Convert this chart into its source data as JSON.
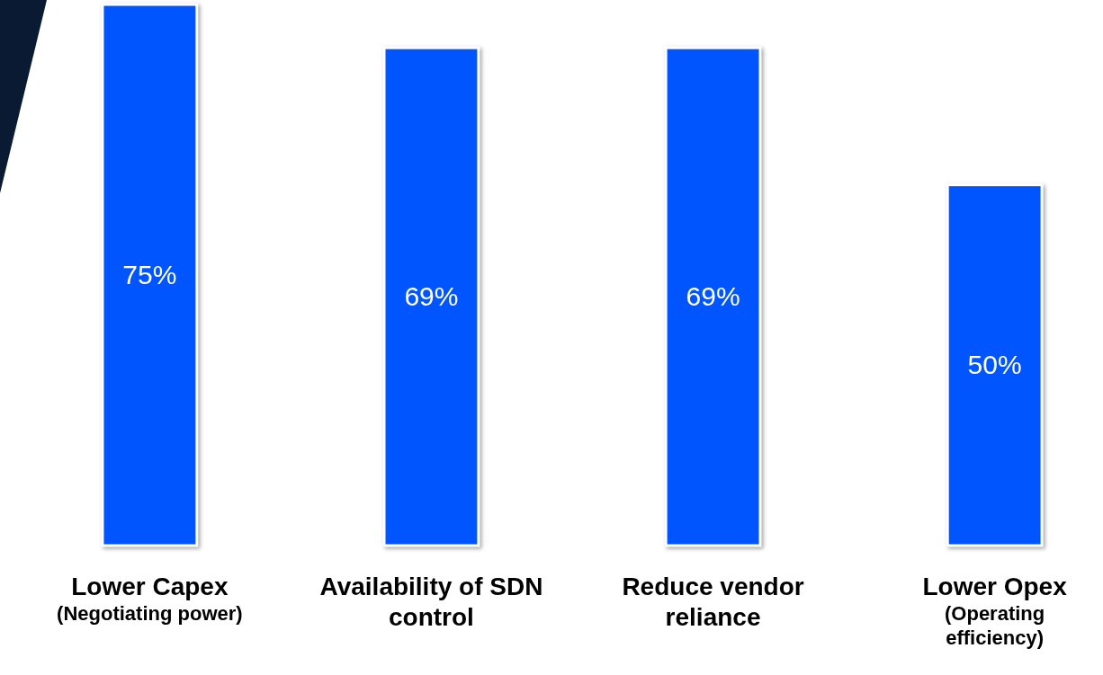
{
  "chart_data": {
    "type": "bar",
    "categories": [
      "Lower Capex (Negotiating power)",
      "Availability of SDN control",
      "Reduce vendor reliance",
      "Lower Opex (Operating efficiency)"
    ],
    "values": [
      75,
      69,
      69,
      50
    ],
    "value_labels": [
      "75%",
      "69%",
      "69%",
      "50%"
    ],
    "color": "#0055ff"
  }
}
